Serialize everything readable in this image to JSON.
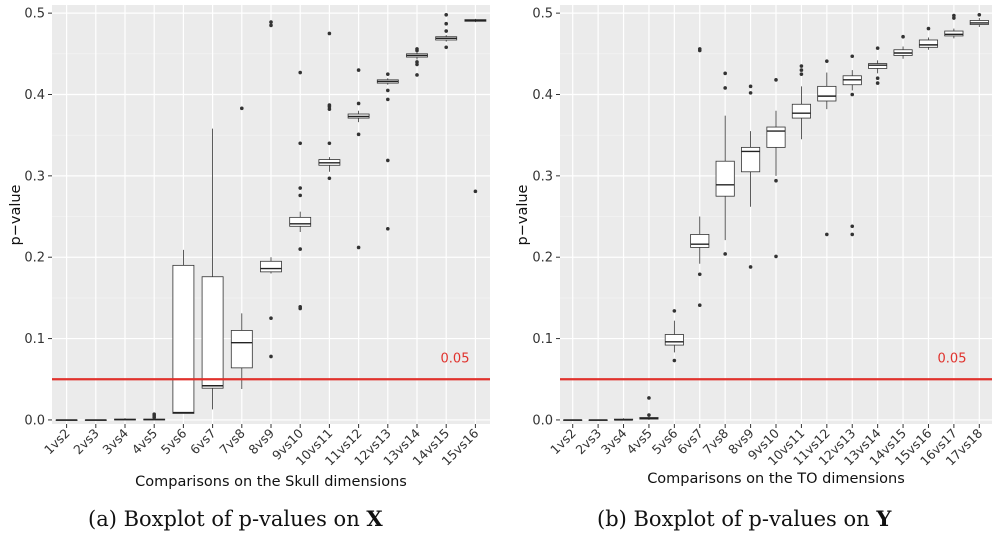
{
  "chart_data": [
    {
      "type": "boxplot",
      "caption_prefix": "(a) Boxplot of p-values on ",
      "caption_var": "X",
      "xlabel": "Comparisons on the Skull dimensions",
      "ylabel": "p−value",
      "ylim": [
        -0.005,
        0.51
      ],
      "yticks": [
        "0.0",
        "0.1",
        "0.2",
        "0.3",
        "0.4",
        "0.5"
      ],
      "threshold": 0.05,
      "threshold_label": "0.05",
      "threshold_color": "#e0322d",
      "categories": [
        "1vs2",
        "2vs3",
        "3vs4",
        "4vs5",
        "5vs6",
        "6vs7",
        "7vs8",
        "8vs9",
        "9vs10",
        "10vs11",
        "11vs12",
        "12vs13",
        "13vs14",
        "14vs15",
        "15vs16"
      ],
      "boxes": [
        {
          "min": 0.0,
          "q1": 0.0,
          "median": 0.0,
          "q3": 0.0,
          "max": 0.0,
          "outliers": []
        },
        {
          "min": 0.0,
          "q1": 0.0,
          "median": 0.0,
          "q3": 0.0,
          "max": 0.0,
          "outliers": []
        },
        {
          "min": 0.0,
          "q1": 0.0,
          "median": 0.0005,
          "q3": 0.001,
          "max": 0.002,
          "outliers": []
        },
        {
          "min": 0.0,
          "q1": 0.0,
          "median": 0.0005,
          "q3": 0.001,
          "max": 0.002,
          "outliers": [
            0.005,
            0.007,
            0.003
          ]
        },
        {
          "min": 0.008,
          "q1": 0.008,
          "median": 0.009,
          "q3": 0.19,
          "max": 0.209,
          "outliers": []
        },
        {
          "min": 0.013,
          "q1": 0.039,
          "median": 0.042,
          "q3": 0.176,
          "max": 0.358,
          "outliers": []
        },
        {
          "min": 0.038,
          "q1": 0.064,
          "median": 0.095,
          "q3": 0.11,
          "max": 0.131,
          "outliers": [
            0.383
          ]
        },
        {
          "min": 0.18,
          "q1": 0.182,
          "median": 0.186,
          "q3": 0.195,
          "max": 0.2,
          "outliers": [
            0.125,
            0.078,
            0.485,
            0.489
          ]
        },
        {
          "min": 0.231,
          "q1": 0.238,
          "median": 0.241,
          "q3": 0.249,
          "max": 0.256,
          "outliers": [
            0.139,
            0.137,
            0.21,
            0.276,
            0.285,
            0.34,
            0.427
          ]
        },
        {
          "min": 0.305,
          "q1": 0.313,
          "median": 0.316,
          "q3": 0.32,
          "max": 0.323,
          "outliers": [
            0.297,
            0.34,
            0.382,
            0.385,
            0.387,
            0.475
          ]
        },
        {
          "min": 0.366,
          "q1": 0.371,
          "median": 0.373,
          "q3": 0.376,
          "max": 0.38,
          "outliers": [
            0.212,
            0.351,
            0.389,
            0.43
          ]
        },
        {
          "min": 0.412,
          "q1": 0.414,
          "median": 0.416,
          "q3": 0.418,
          "max": 0.42,
          "outliers": [
            0.235,
            0.319,
            0.394,
            0.405,
            0.425
          ]
        },
        {
          "min": 0.443,
          "q1": 0.446,
          "median": 0.448,
          "q3": 0.45,
          "max": 0.452,
          "outliers": [
            0.424,
            0.437,
            0.44,
            0.454,
            0.456
          ]
        },
        {
          "min": 0.465,
          "q1": 0.467,
          "median": 0.469,
          "q3": 0.471,
          "max": 0.473,
          "outliers": [
            0.458,
            0.478,
            0.487,
            0.498
          ]
        },
        {
          "min": 0.489,
          "q1": 0.49,
          "median": 0.491,
          "q3": 0.492,
          "max": 0.493,
          "outliers": [
            0.281
          ]
        }
      ]
    },
    {
      "type": "boxplot",
      "caption_prefix": "(b) Boxplot of p-values on ",
      "caption_var": "Y",
      "xlabel": "Comparisons on the TO dimensions",
      "ylabel": "p−value",
      "ylim": [
        -0.005,
        0.51
      ],
      "yticks": [
        "0.0",
        "0.1",
        "0.2",
        "0.3",
        "0.4",
        "0.5"
      ],
      "threshold": 0.05,
      "threshold_label": "0.05",
      "threshold_color": "#e0322d",
      "categories": [
        "1vs2",
        "2vs3",
        "3vs4",
        "4vs5",
        "5vs6",
        "6vs7",
        "7vs8",
        "8vs9",
        "9vs10",
        "10vs11",
        "11vs12",
        "12vs13",
        "13vs14",
        "14vs15",
        "15vs16",
        "16vs17",
        "17vs18"
      ],
      "boxes": [
        {
          "min": 0.0,
          "q1": 0.0,
          "median": 0.0,
          "q3": 0.0,
          "max": 0.0,
          "outliers": []
        },
        {
          "min": 0.0,
          "q1": 0.0,
          "median": 0.0,
          "q3": 0.0,
          "max": 0.0,
          "outliers": []
        },
        {
          "min": 0.0,
          "q1": 0.0,
          "median": 0.0,
          "q3": 0.001,
          "max": 0.002,
          "outliers": []
        },
        {
          "min": 0.0,
          "q1": 0.001,
          "median": 0.002,
          "q3": 0.003,
          "max": 0.004,
          "outliers": [
            0.027,
            0.006
          ]
        },
        {
          "min": 0.083,
          "q1": 0.092,
          "median": 0.096,
          "q3": 0.105,
          "max": 0.122,
          "outliers": [
            0.073,
            0.134
          ]
        },
        {
          "min": 0.192,
          "q1": 0.212,
          "median": 0.216,
          "q3": 0.228,
          "max": 0.25,
          "outliers": [
            0.179,
            0.141,
            0.454,
            0.456
          ]
        },
        {
          "min": 0.221,
          "q1": 0.275,
          "median": 0.289,
          "q3": 0.318,
          "max": 0.374,
          "outliers": [
            0.204,
            0.408,
            0.426
          ]
        },
        {
          "min": 0.262,
          "q1": 0.305,
          "median": 0.33,
          "q3": 0.335,
          "max": 0.355,
          "outliers": [
            0.188,
            0.402,
            0.41
          ]
        },
        {
          "min": 0.3,
          "q1": 0.335,
          "median": 0.355,
          "q3": 0.36,
          "max": 0.38,
          "outliers": [
            0.201,
            0.294,
            0.418
          ]
        },
        {
          "min": 0.345,
          "q1": 0.371,
          "median": 0.377,
          "q3": 0.388,
          "max": 0.41,
          "outliers": [
            0.425,
            0.43,
            0.435
          ]
        },
        {
          "min": 0.382,
          "q1": 0.392,
          "median": 0.398,
          "q3": 0.41,
          "max": 0.427,
          "outliers": [
            0.228,
            0.441
          ]
        },
        {
          "min": 0.405,
          "q1": 0.412,
          "median": 0.418,
          "q3": 0.423,
          "max": 0.43,
          "outliers": [
            0.228,
            0.238,
            0.4,
            0.447
          ]
        },
        {
          "min": 0.426,
          "q1": 0.432,
          "median": 0.436,
          "q3": 0.438,
          "max": 0.442,
          "outliers": [
            0.414,
            0.42,
            0.457
          ]
        },
        {
          "min": 0.444,
          "q1": 0.448,
          "median": 0.451,
          "q3": 0.455,
          "max": 0.459,
          "outliers": [
            0.471
          ]
        },
        {
          "min": 0.455,
          "q1": 0.458,
          "median": 0.461,
          "q3": 0.467,
          "max": 0.47,
          "outliers": [
            0.481
          ]
        },
        {
          "min": 0.469,
          "q1": 0.472,
          "median": 0.474,
          "q3": 0.478,
          "max": 0.481,
          "outliers": [
            0.494,
            0.497
          ]
        },
        {
          "min": 0.483,
          "q1": 0.486,
          "median": 0.488,
          "q3": 0.491,
          "max": 0.494,
          "outliers": [
            0.498
          ]
        }
      ]
    }
  ]
}
